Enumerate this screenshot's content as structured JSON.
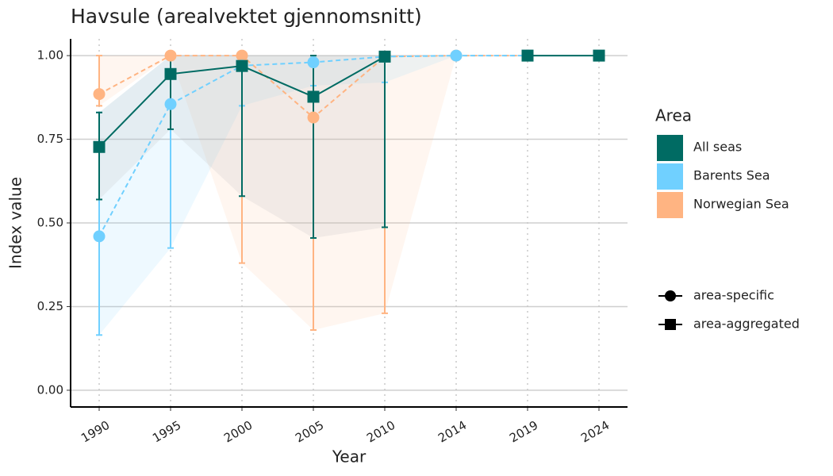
{
  "chart_data": {
    "type": "line",
    "title": "Havsule (arealvektet gjennomsnitt)",
    "x_label": "Year",
    "y_label": "Index value",
    "categories": [
      "1990",
      "1995",
      "2000",
      "2005",
      "2010",
      "2014",
      "2019",
      "2024"
    ],
    "ylim": [
      -0.05,
      1.05
    ],
    "yticks": [
      {
        "value": 0,
        "label": "0.00"
      },
      {
        "value": 0.25,
        "label": "0.25"
      },
      {
        "value": 0.5,
        "label": "0.50"
      },
      {
        "value": 0.75,
        "label": "0.75"
      },
      {
        "value": 1,
        "label": "1.00"
      }
    ],
    "grid": true,
    "legend_title": "Area",
    "shape_legend": [
      "area-specific",
      "area-aggregated"
    ],
    "series": [
      {
        "name": "Norwegian Sea",
        "color": "#ffb482",
        "shape": "circle",
        "dashed": true,
        "values": [
          0.885,
          1.0,
          1.0,
          0.815,
          0.997,
          1.0,
          1.0,
          null
        ],
        "lower": [
          0.85,
          1.0,
          0.38,
          0.18,
          0.23,
          1.0,
          1.0,
          null
        ],
        "upper": [
          1.0,
          1.0,
          1.0,
          1.0,
          1.0,
          1.0,
          1.0,
          null
        ]
      },
      {
        "name": "Barents Sea",
        "color": "#70d0ff",
        "shape": "circle",
        "dashed": true,
        "values": [
          0.46,
          0.855,
          0.97,
          0.98,
          0.997,
          1.0,
          1.0,
          null
        ],
        "lower": [
          0.165,
          0.425,
          0.85,
          0.91,
          0.92,
          1.0,
          1.0,
          null
        ],
        "upper": [
          0.83,
          1.0,
          1.0,
          1.0,
          1.0,
          1.0,
          1.0,
          null
        ]
      },
      {
        "name": "All seas",
        "color": "#006b63",
        "shape": "square",
        "dashed": false,
        "values": [
          0.727,
          0.945,
          0.969,
          0.877,
          0.997,
          null,
          1.0,
          1.0
        ],
        "lower": [
          0.57,
          0.78,
          0.58,
          0.455,
          0.487,
          null,
          1.0,
          1.0
        ],
        "upper": [
          0.83,
          1.0,
          1.0,
          1.0,
          1.0,
          null,
          1.0,
          1.0
        ]
      }
    ]
  }
}
